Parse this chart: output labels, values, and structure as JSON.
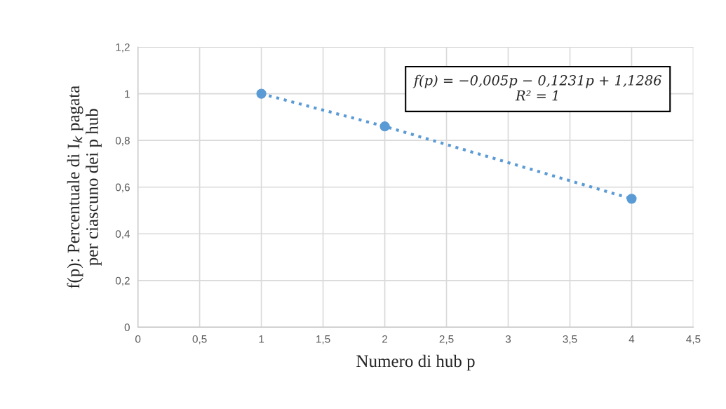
{
  "chart_data": {
    "type": "scatter",
    "xlabel": "Numero di hub p",
    "ylabel": "f(p): Percentuale di I$_{k}$ pagata\nper ciascuno dei p hub",
    "annotations": [
      "f(p) = −0,005p − 0,1231p + 1,1286\nR² = 1"
    ],
    "series": [
      {
        "color": "#5b9bd5",
        "x": [
          1,
          2,
          4
        ],
        "values": [
          1.0,
          0.86,
          0.55
        ],
        "marker": "circle"
      },
      {
        "type": "line",
        "color": "#5b9bd5",
        "x": [
          1,
          2,
          4
        ],
        "values": [
          1.0,
          0.86,
          0.55
        ],
        "line_style": "dotted",
        "marker": "none"
      }
    ],
    "xlim": [
      0,
      4.5
    ],
    "xticks": [
      0,
      {
        "value": 0.5,
        "label": "0,5"
      },
      1,
      {
        "value": 1.5,
        "label": "1,5"
      },
      2,
      {
        "value": 2.5,
        "label": "2,5"
      },
      3,
      {
        "value": 3.5,
        "label": "3,5"
      },
      4,
      {
        "value": 4.5,
        "label": "4,5"
      }
    ],
    "ylim": [
      0,
      1.2
    ],
    "yticks": [
      0,
      {
        "value": 0.2,
        "label": "0,2"
      },
      {
        "value": 0.4,
        "label": "0,4"
      },
      {
        "value": 0.6,
        "label": "0,6"
      },
      {
        "value": 0.8,
        "label": "0,8"
      },
      1,
      {
        "value": 1.2,
        "label": "1,2"
      }
    ],
    "grid": true,
    "legend": false
  }
}
